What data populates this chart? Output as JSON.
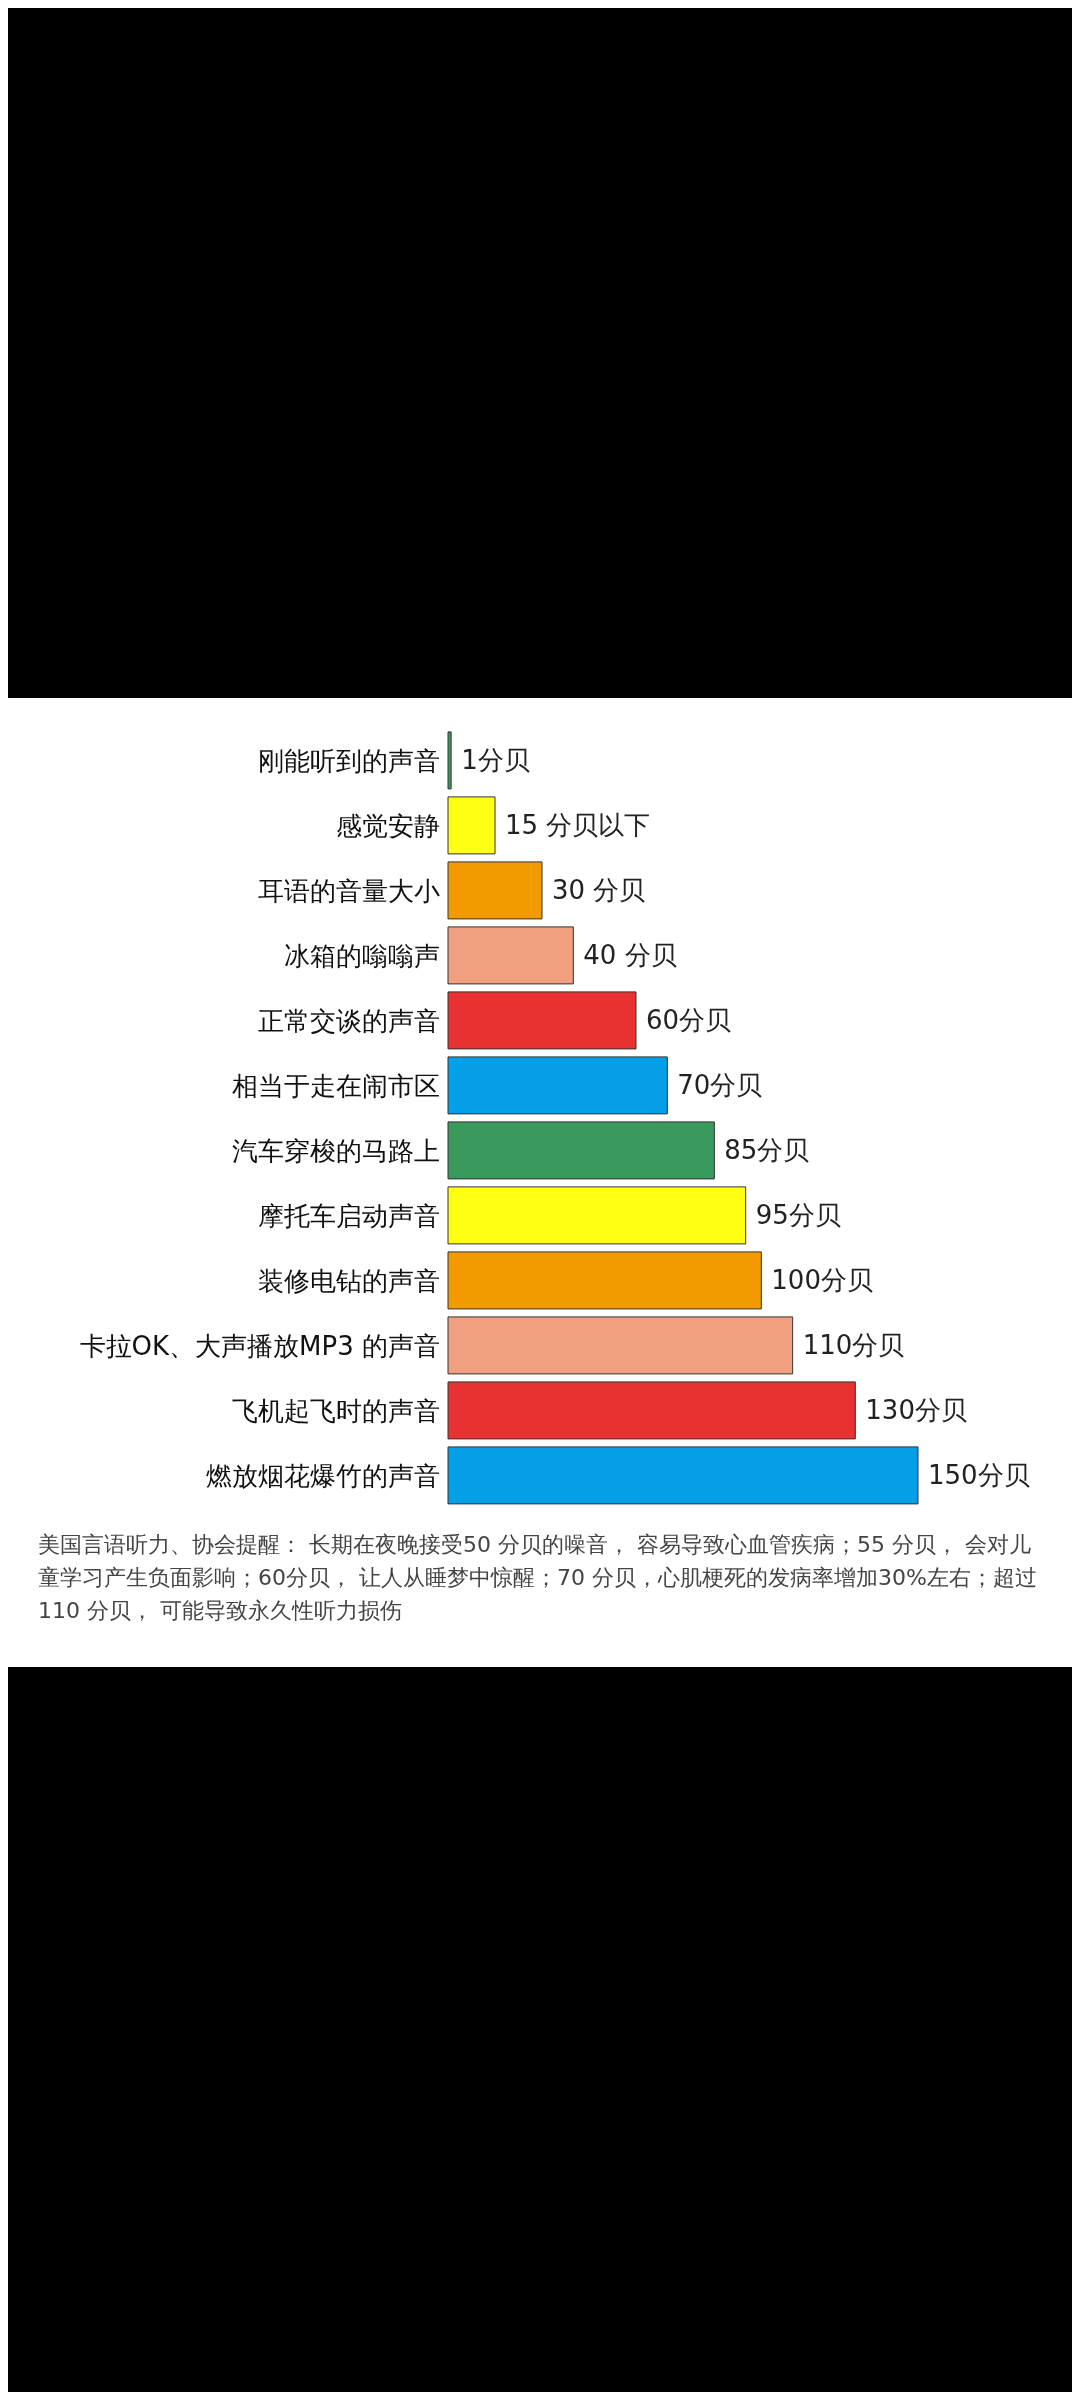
{
  "chart_data": {
    "type": "bar",
    "orientation": "horizontal",
    "categories": [
      "刚能听到的声音",
      "感觉安静",
      "耳语的音量大小",
      "冰箱的嗡嗡声",
      "正常交谈的声音",
      "相当于走在闹市区",
      "汽车穿梭的马路上",
      "摩托车启动声音",
      "装修电钻的声音",
      "卡拉OK、大声播放MP3 的声音",
      "飞机起飞时的声音",
      "燃放烟花爆竹的声音"
    ],
    "values": [
      1,
      15,
      30,
      40,
      60,
      70,
      85,
      95,
      100,
      110,
      130,
      150
    ],
    "value_labels": [
      "1分贝",
      "15 分贝以下",
      "30 分贝",
      "40 分贝",
      "60分贝",
      "70分贝",
      "85分贝",
      "95分贝",
      "100分贝",
      "110分贝",
      "130分贝",
      "150分贝"
    ],
    "colors": [
      "#3a9a5e",
      "#ffff14",
      "#f29a00",
      "#f0a07e",
      "#e83232",
      "#049fe6",
      "#3a9a5e",
      "#ffff14",
      "#f29a00",
      "#f0a07e",
      "#e83232",
      "#049fe6"
    ],
    "annotations": [
      "美国言语听力、协会提醒： 长期在夜晚接受50 分贝的噪音， 容易导致心血管疾病；55 分贝， 会对儿童学习产生负面影响；60分贝， 让人从睡梦中惊醒；70 分贝，心肌梗死的发病率增加30%左右；超过110 分贝， 可能导致永久性听力损伤"
    ],
    "grid": false,
    "legend": false
  }
}
